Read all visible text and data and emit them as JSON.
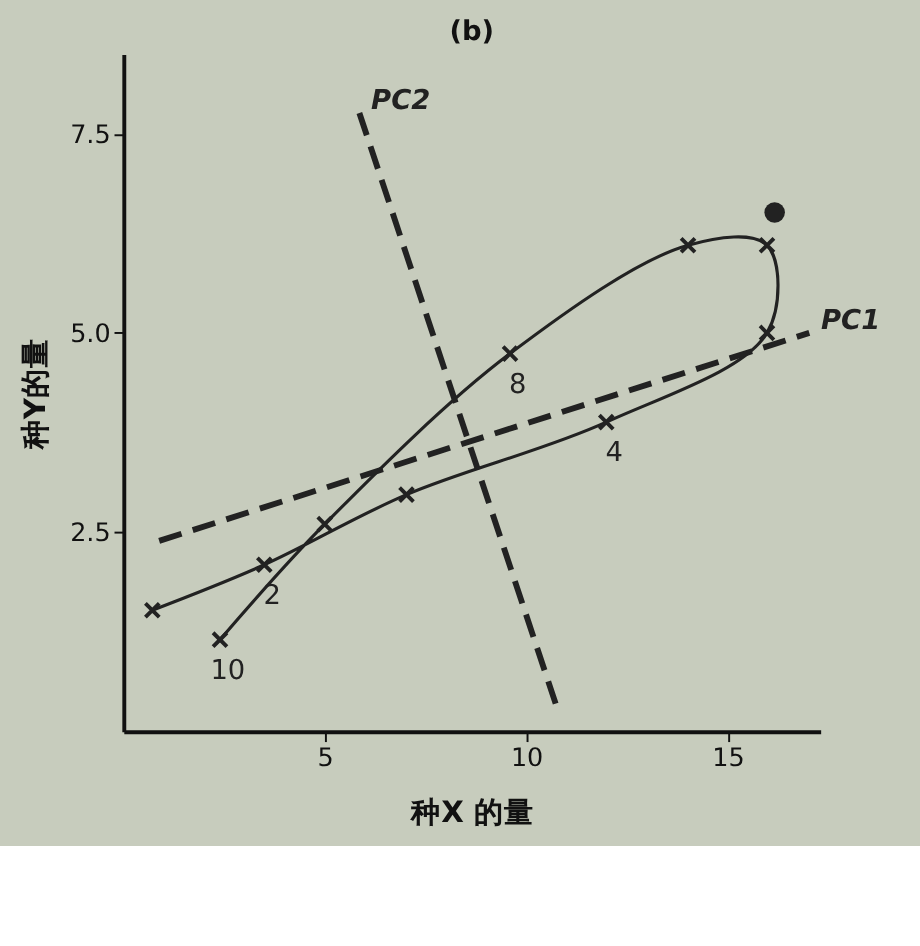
{
  "chart_data": {
    "type": "line",
    "title": "(b)",
    "xlabel": "种X 的量",
    "ylabel": "种Y的量",
    "xlim": [
      0,
      17.3
    ],
    "ylim": [
      0,
      8.5
    ],
    "xticks": [
      5,
      10,
      15
    ],
    "yticks": [
      2.5,
      {
        "value": 5,
        "label": "5.0"
      },
      7.5
    ],
    "grid": false,
    "legend": false,
    "series": [
      {
        "color": "#222222",
        "marker": "cross",
        "line_style": "solid",
        "x": [
          0.72,
          3.5,
          7.03,
          11.99,
          15.98,
          15.98,
          14.02,
          9.6,
          5.0,
          2.4
        ],
        "values": [
          1.52,
          2.09,
          2.97,
          3.88,
          5.0,
          6.1,
          6.1,
          4.74,
          2.6,
          1.15
        ]
      },
      {
        "name": "PC1",
        "color": "#222222",
        "line_style": "dashed",
        "x": [
          0.89,
          17.03
        ],
        "values": [
          2.39,
          5.0
        ]
      },
      {
        "name": "PC2",
        "color": "#222222",
        "line_style": "dashed",
        "x": [
          5.86,
          10.77
        ],
        "values": [
          7.76,
          0.29
        ]
      },
      {
        "type": "scatter",
        "color": "#222222",
        "marker": "circle",
        "x": [
          16.17
        ],
        "values": [
          6.51
        ]
      }
    ],
    "annotations": [
      {
        "text": "2",
        "x": 3.5,
        "y": 2.09
      },
      {
        "text": "4",
        "x": 11.99,
        "y": 3.88
      },
      {
        "text": "8",
        "x": 9.6,
        "y": 4.74
      },
      {
        "text": "10",
        "x": 2.4,
        "y": 1.15
      }
    ]
  }
}
